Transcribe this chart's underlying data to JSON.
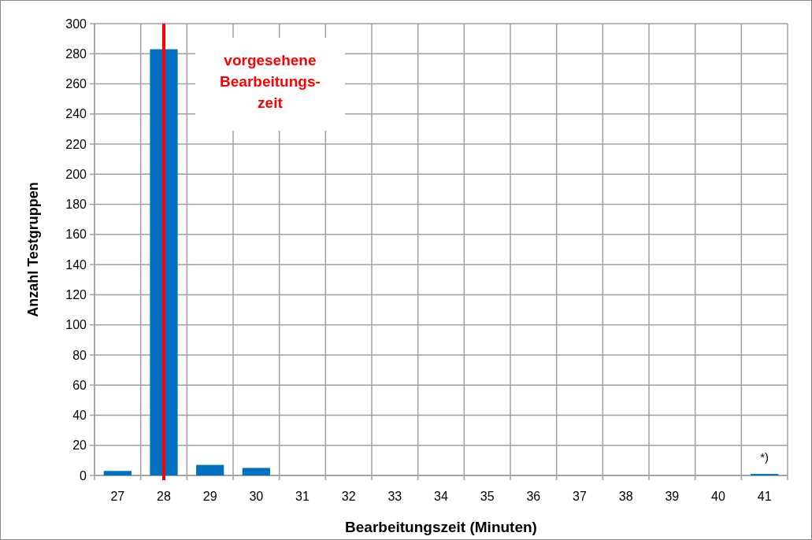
{
  "chart_data": {
    "type": "bar",
    "categories": [
      "27",
      "28",
      "29",
      "30",
      "31",
      "32",
      "33",
      "34",
      "35",
      "36",
      "37",
      "38",
      "39",
      "40",
      "41"
    ],
    "values": [
      3,
      283,
      7,
      5,
      0,
      0,
      0,
      0,
      0,
      0,
      0,
      0,
      0,
      0,
      1
    ],
    "color": "#0070c0",
    "xlabel": "Bearbeitungszeit (Minuten)",
    "ylabel": "Anzahl Testgruppen",
    "ylim": [
      0,
      300
    ],
    "yticks": [
      0,
      20,
      40,
      60,
      80,
      100,
      120,
      140,
      160,
      180,
      200,
      220,
      240,
      260,
      280,
      300
    ],
    "grid": true,
    "ref_lines": [
      {
        "axis": "x",
        "value": "28",
        "label": "vorgesehene\nBearbeitungs-\nzeit",
        "color": "#ff0000"
      }
    ],
    "annotations": [
      "*)"
    ]
  }
}
